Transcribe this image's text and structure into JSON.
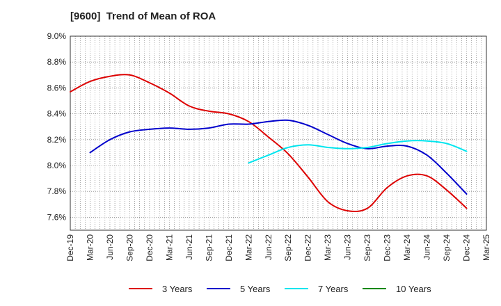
{
  "chart_data": {
    "type": "line",
    "title": "[9600]  Trend of Mean of ROA",
    "xlabel": "",
    "ylabel": "",
    "ylim": [
      7.5,
      9.0
    ],
    "y_ticks": [
      7.6,
      7.8,
      8.0,
      8.2,
      8.4,
      8.6,
      8.8,
      9.0
    ],
    "y_tick_labels": [
      "7.6%",
      "7.8%",
      "8.0%",
      "8.2%",
      "8.4%",
      "8.6%",
      "8.8%",
      "9.0%"
    ],
    "categories": [
      "Dec-19",
      "Mar-20",
      "Jun-20",
      "Sep-20",
      "Dec-20",
      "Mar-21",
      "Jun-21",
      "Sep-21",
      "Dec-21",
      "Mar-22",
      "Jun-22",
      "Sep-22",
      "Dec-22",
      "Mar-23",
      "Jun-23",
      "Sep-23",
      "Dec-23",
      "Mar-24",
      "Jun-24",
      "Sep-24",
      "Dec-24",
      "Mar-25"
    ],
    "grid": true,
    "legend_position": "bottom",
    "series": [
      {
        "name": "3 Years",
        "color": "#dd0000",
        "values": [
          8.57,
          8.65,
          8.69,
          8.7,
          8.64,
          8.56,
          8.46,
          8.42,
          8.4,
          8.34,
          8.22,
          8.09,
          7.91,
          7.72,
          7.65,
          7.67,
          7.83,
          7.92,
          7.92,
          7.81,
          7.67,
          null
        ]
      },
      {
        "name": "5 Years",
        "color": "#0000cc",
        "values": [
          null,
          8.1,
          8.2,
          8.26,
          8.28,
          8.29,
          8.28,
          8.29,
          8.32,
          8.32,
          8.34,
          8.35,
          8.31,
          8.24,
          8.17,
          8.13,
          8.15,
          8.15,
          8.08,
          7.94,
          7.78,
          null
        ]
      },
      {
        "name": "7 Years",
        "color": "#00e5ee",
        "values": [
          null,
          null,
          null,
          null,
          null,
          null,
          null,
          null,
          null,
          8.02,
          8.08,
          8.14,
          8.16,
          8.14,
          8.13,
          8.14,
          8.17,
          8.19,
          8.19,
          8.17,
          8.11,
          null
        ]
      },
      {
        "name": "10 Years",
        "color": "#008800",
        "values": [
          null,
          null,
          null,
          null,
          null,
          null,
          null,
          null,
          null,
          null,
          null,
          null,
          null,
          null,
          null,
          null,
          null,
          null,
          null,
          null,
          null,
          null
        ]
      }
    ]
  }
}
